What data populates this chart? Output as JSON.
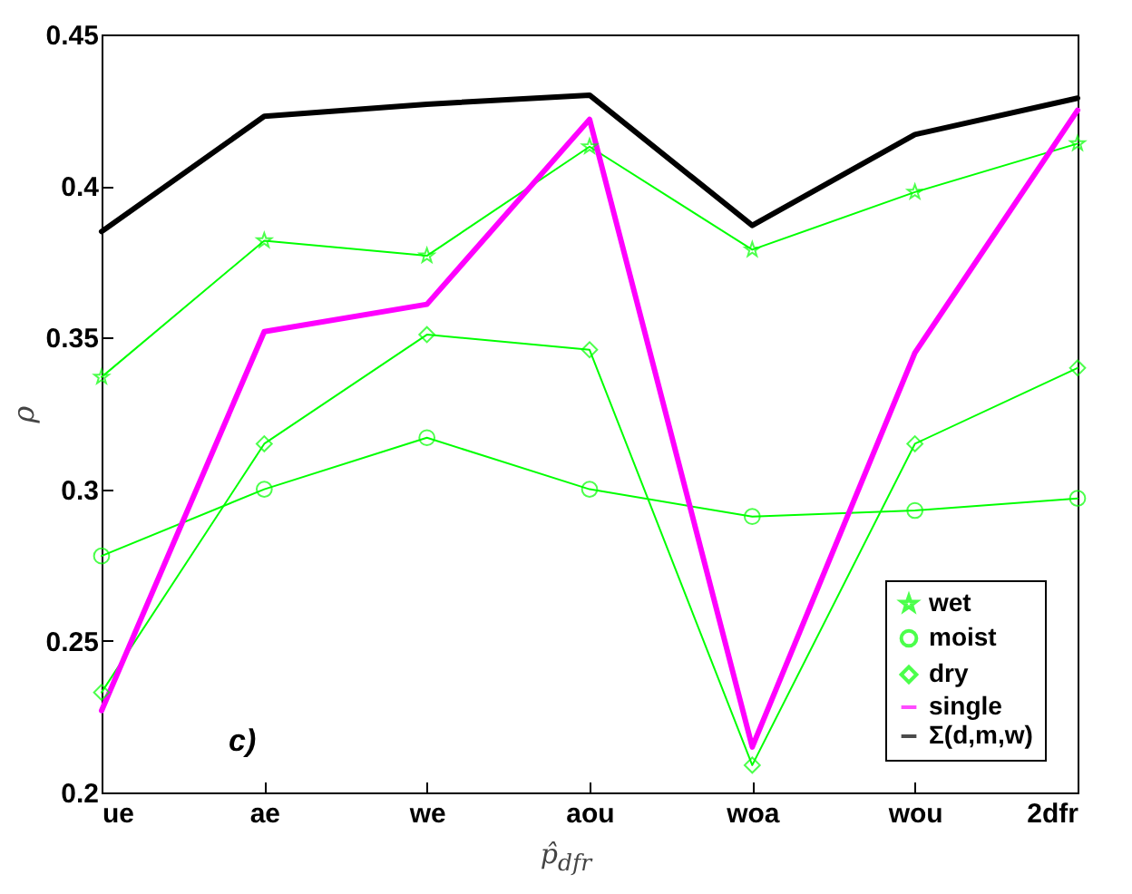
{
  "chart_data": {
    "type": "line",
    "xlabel": "p̂$_{dfr}$",
    "ylabel": "ρ",
    "categories": [
      "ue",
      "ae",
      "we",
      "aou",
      "woa",
      "wou",
      "2dfr"
    ],
    "ylim": [
      0.2,
      0.45
    ],
    "yticks": [
      0.2,
      0.25,
      0.3,
      0.35,
      0.4,
      0.45
    ],
    "grid": false,
    "legend": "bottom right",
    "annotations": [
      "c)"
    ],
    "series": [
      {
        "name": "wet",
        "color": "#00ff00",
        "marker": "star",
        "values": [
          0.337,
          0.382,
          0.377,
          0.413,
          0.379,
          0.398,
          0.414
        ]
      },
      {
        "name": "moist",
        "color": "#00ff00",
        "marker": "circle",
        "values": [
          0.278,
          0.3,
          0.317,
          0.3,
          0.291,
          0.293,
          0.297
        ]
      },
      {
        "name": "dry",
        "color": "#00ff00",
        "marker": "diamond",
        "values": [
          0.233,
          0.315,
          0.351,
          0.346,
          0.209,
          0.315,
          0.34
        ]
      },
      {
        "name": "single",
        "color": "#ff00ff",
        "marker": "none",
        "values": [
          0.227,
          0.352,
          0.361,
          0.422,
          0.215,
          0.345,
          0.425
        ]
      },
      {
        "name": "Σ(d,m,w)",
        "color": "#000000",
        "marker": "none",
        "values": [
          0.385,
          0.423,
          0.427,
          0.43,
          0.387,
          0.417,
          0.429
        ]
      }
    ]
  }
}
